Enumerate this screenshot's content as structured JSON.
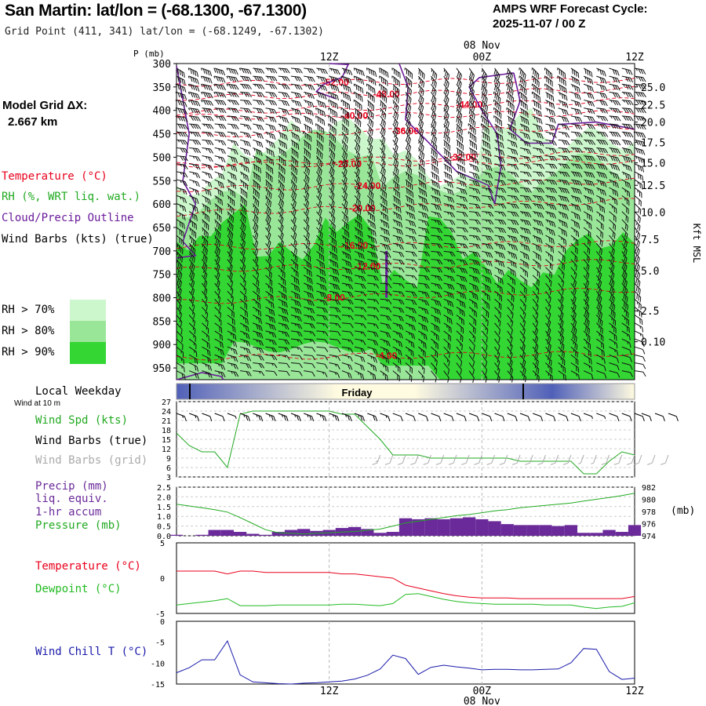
{
  "header": {
    "title": "San Martin:  lat/lon = (-68.1300, -67.1300)",
    "subtitle": "Grid Point (411, 341) lat/lon = (-68.1249, -67.1302)",
    "cycle_label": "AMPS WRF Forecast Cycle:",
    "cycle_value": "2025-11-07 / 00  Z"
  },
  "model_grid": {
    "label": "Model Grid ΔX:",
    "value": "2.667 km"
  },
  "legend": {
    "temperature": "Temperature (°C)",
    "rh": "RH (%, WRT liq. wat.)",
    "cloud": "Cloud/Precip Outline",
    "wind_barbs": "Wind Barbs (kts) (true)",
    "rh70": "RH > 70%",
    "rh80": "RH > 80%",
    "rh90": "RH > 90%",
    "local_weekday": "Local Weekday",
    "wind_10m": "Wind at 10 m",
    "wind_spd": "Wind Spd (kts)",
    "wind_barbs_true": "Wind Barbs (true)",
    "wind_barbs_grid": "Wind Barbs (grid)",
    "precip1": "Precip (mm)",
    "precip2": "liq. equiv.",
    "precip3": "1-hr accum",
    "pressure": "Pressure (mb)",
    "temp2": "Temperature (°C)",
    "dewpoint": "Dewpoint (°C)",
    "windchill": "Wind Chill T (°C)",
    "colors": {
      "temperature": "#e8001c",
      "rh": "#22aa22",
      "cloud": "#6a1b9a",
      "wind": "#000000",
      "wind_grid": "#aaaaaa",
      "rh70": "#ccf7cc",
      "rh80": "#99e699",
      "rh90": "#33d633",
      "dewpoint": "#22bb22",
      "windchill": "#1a1aaa",
      "precip": "#6a2a9a"
    }
  },
  "time_axis": {
    "top_ticks": [
      "12Z",
      "00Z",
      "12Z"
    ],
    "top_date": "08 Nov",
    "bottom_ticks": [
      "12Z",
      "00Z",
      "12Z"
    ],
    "bottom_date": "08 Nov",
    "hours_start": 0,
    "hours_end": 36
  },
  "weekday_bar": {
    "label": "Friday",
    "colors": {
      "night": "#5060b8",
      "day": "#fffbe0"
    }
  },
  "chart_data": [
    {
      "type": "heatmap",
      "name": "cross_section",
      "ylabel": "P (mb)",
      "pressure_ticks": [
        300,
        350,
        400,
        450,
        500,
        550,
        600,
        650,
        700,
        750,
        800,
        850,
        900,
        950
      ],
      "right_axis_label": "Kft MSL",
      "right_axis_ticks": [
        "25.0",
        "22.5",
        "20.0",
        "17.5",
        "15.0",
        "12.5",
        "10.0",
        "7.5",
        "5.0",
        "2.5",
        "0.10"
      ],
      "right_axis_pressures": [
        318,
        350,
        388,
        425,
        468,
        512,
        560,
        617,
        675,
        742,
        828,
        894,
        970
      ],
      "ylim": [
        300,
        975
      ],
      "temperature_labels": [
        {
          "text": "-52.00",
          "hour": 12.5,
          "p": 340
        },
        {
          "text": "-48.00",
          "hour": 16.5,
          "p": 365
        },
        {
          "text": "-44.00",
          "hour": 23.0,
          "p": 388
        },
        {
          "text": "-40.00",
          "hour": 14.0,
          "p": 411
        },
        {
          "text": "-36.00",
          "hour": 18.0,
          "p": 444
        },
        {
          "text": "-32.00",
          "hour": 22.5,
          "p": 500
        },
        {
          "text": "-28.00",
          "hour": 13.5,
          "p": 514
        },
        {
          "text": "-24.00",
          "hour": 15.0,
          "p": 561
        },
        {
          "text": "-20.00",
          "hour": 14.6,
          "p": 609
        },
        {
          "text": "-16.00",
          "hour": 14.0,
          "p": 689
        },
        {
          "text": "-12.00",
          "hour": 15.0,
          "p": 733
        },
        {
          "text": "-8.00",
          "hour": 12.4,
          "p": 800
        },
        {
          "text": "-4.00",
          "hour": 16.5,
          "p": 924
        }
      ]
    },
    {
      "type": "line",
      "name": "wind_speed_10m",
      "ylim": [
        3,
        27
      ],
      "yticks": [
        3,
        6,
        9,
        12,
        15,
        18,
        21,
        24,
        27
      ],
      "x_hours": [
        0,
        1,
        2,
        3,
        4,
        5,
        6,
        7,
        8,
        9,
        10,
        11,
        12,
        13,
        14,
        15,
        16,
        17,
        18,
        19,
        20,
        21,
        22,
        23,
        24,
        25,
        26,
        27,
        28,
        29,
        30,
        31,
        32,
        33,
        34,
        35,
        36
      ],
      "values": [
        17,
        13,
        11,
        11,
        6,
        23,
        24,
        24,
        24,
        24,
        24,
        24,
        24,
        23,
        23,
        19,
        15,
        10,
        10,
        10,
        9,
        9,
        9,
        9,
        9,
        9,
        9,
        8,
        8,
        8,
        8,
        8,
        4,
        4,
        8,
        11,
        10
      ]
    },
    {
      "type": "bar",
      "name": "precip_and_pressure",
      "ylim": [
        0,
        2.5
      ],
      "yticks": [
        0.0,
        0.5,
        1.0,
        1.5,
        2.0,
        2.5
      ],
      "y2lim": [
        974,
        982
      ],
      "y2ticks": [
        974,
        976,
        978,
        980,
        982
      ],
      "y2label": "(mb)",
      "precip_mm": [
        0.05,
        0.0,
        0.05,
        0.3,
        0.3,
        0.2,
        0.1,
        0.05,
        0.2,
        0.3,
        0.35,
        0.25,
        0.3,
        0.4,
        0.45,
        0.35,
        0.15,
        0.2,
        0.9,
        0.85,
        0.9,
        0.85,
        0.9,
        0.95,
        0.85,
        0.75,
        0.6,
        0.55,
        0.55,
        0.55,
        0.5,
        0.55,
        0.15,
        0.15,
        0.3,
        0.2,
        0.55
      ],
      "pressure_mb": [
        979.2,
        978.9,
        978.6,
        978.3,
        977.9,
        977.0,
        976.0,
        975.0,
        974.5,
        974.4,
        974.3,
        974.4,
        974.5,
        974.6,
        974.7,
        974.9,
        975.1,
        975.6,
        976.1,
        976.4,
        976.7,
        977.0,
        977.3,
        977.5,
        977.8,
        978.1,
        978.3,
        978.6,
        978.8,
        979.0,
        979.2,
        979.4,
        979.7,
        980.0,
        980.3,
        980.6,
        981.0
      ]
    },
    {
      "type": "line",
      "name": "temperature_dewpoint",
      "ylim": [
        -5,
        5
      ],
      "yticks": [
        -5,
        0,
        5
      ],
      "temperature": [
        1.0,
        1.0,
        1.0,
        1.0,
        0.6,
        1.0,
        1.0,
        0.8,
        0.8,
        0.8,
        0.8,
        0.8,
        0.8,
        0.6,
        0.6,
        0.4,
        0.2,
        0.0,
        -1.0,
        -1.4,
        -1.8,
        -2.2,
        -2.5,
        -2.7,
        -2.8,
        -2.8,
        -2.8,
        -2.9,
        -2.9,
        -2.9,
        -2.9,
        -2.9,
        -2.9,
        -2.9,
        -2.9,
        -2.9,
        -2.6
      ],
      "dewpoint": [
        -3.8,
        -3.6,
        -3.4,
        -3.2,
        -2.9,
        -3.9,
        -3.9,
        -3.9,
        -3.8,
        -3.8,
        -3.8,
        -3.8,
        -3.8,
        -3.7,
        -3.7,
        -3.8,
        -3.9,
        -3.6,
        -2.3,
        -2.2,
        -2.6,
        -3.0,
        -3.3,
        -3.5,
        -3.6,
        -3.7,
        -3.7,
        -3.7,
        -3.7,
        -3.8,
        -3.8,
        -3.8,
        -4.1,
        -4.3,
        -4.1,
        -4.0,
        -3.5
      ]
    },
    {
      "type": "line",
      "name": "wind_chill",
      "ylim": [
        -15,
        0
      ],
      "yticks": [
        -15,
        -10,
        -5,
        0
      ],
      "values": [
        -12.3,
        -11.1,
        -9.2,
        -9.2,
        -4.7,
        -12.8,
        -14.5,
        -14.7,
        -14.9,
        -15.0,
        -14.8,
        -14.7,
        -14.5,
        -14.3,
        -13.8,
        -12.9,
        -11.4,
        -8.1,
        -8.9,
        -12.7,
        -11.0,
        -10.5,
        -10.9,
        -11.2,
        -11.6,
        -11.5,
        -11.5,
        -11.6,
        -11.6,
        -11.5,
        -11.4,
        -9.9,
        -6.5,
        -6.7,
        -12.0,
        -13.9,
        -13.6
      ]
    }
  ]
}
